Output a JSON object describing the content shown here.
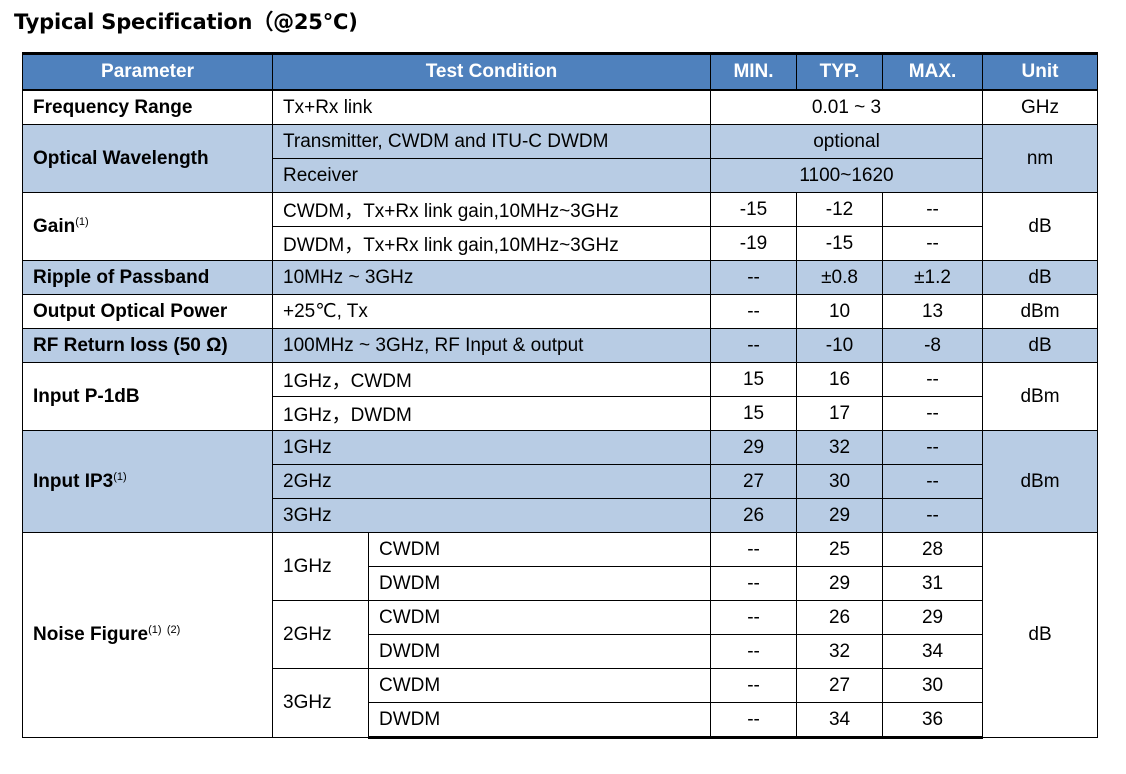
{
  "title": "Typical Specification（@25°C)",
  "header": {
    "parameter": "Parameter",
    "test_condition": "Test Condition",
    "min": "MIN.",
    "typ": "TYP.",
    "max": "MAX.",
    "unit": "Unit"
  },
  "rows": {
    "freq": {
      "param": "Frequency Range",
      "cond": "Tx+Rx link",
      "value": "0.01 ~ 3",
      "unit": "GHz"
    },
    "wave": {
      "param": "Optical Wavelength",
      "cond1": "Transmitter, CWDM and ITU-C DWDM",
      "value1": "optional",
      "cond2": "Receiver",
      "value2": "1100~1620",
      "unit": "nm"
    },
    "gain": {
      "param": "Gain",
      "note": "(1)",
      "unit": "dB",
      "r1": {
        "cond": "CWDM，Tx+Rx link gain,10MHz~3GHz",
        "min": "-15",
        "typ": "-12",
        "max": "--"
      },
      "r2": {
        "cond": "DWDM，Tx+Rx link gain,10MHz~3GHz",
        "min": "-19",
        "typ": "-15",
        "max": "--"
      }
    },
    "ripple": {
      "param": "Ripple of Passband",
      "cond": "10MHz ~ 3GHz",
      "min": "--",
      "typ": "±0.8",
      "max": "±1.2",
      "unit": "dB"
    },
    "power": {
      "param": "Output Optical Power",
      "cond": "+25℃, Tx",
      "min": "--",
      "typ": "10",
      "max": "13",
      "unit": "dBm"
    },
    "rl": {
      "param": "RF Return loss (50 Ω)",
      "cond": "100MHz ~ 3GHz, RF Input & output",
      "min": "--",
      "typ": "-10",
      "max": "-8",
      "unit": "dB"
    },
    "p1db": {
      "param": "Input P-1dB",
      "unit": "dBm",
      "r1": {
        "cond": "1GHz，CWDM",
        "min": "15",
        "typ": "16",
        "max": "--"
      },
      "r2": {
        "cond": "1GHz，DWDM",
        "min": "15",
        "typ": "17",
        "max": "--"
      }
    },
    "ip3": {
      "param": "Input IP3",
      "note": "(1)",
      "unit": "dBm",
      "r1": {
        "cond": "1GHz",
        "min": "29",
        "typ": "32",
        "max": "--"
      },
      "r2": {
        "cond": "2GHz",
        "min": "27",
        "typ": "30",
        "max": "--"
      },
      "r3": {
        "cond": "3GHz",
        "min": "26",
        "typ": "29",
        "max": "--"
      }
    },
    "nf": {
      "param": "Noise Figure",
      "note1": "(1)",
      "note2": "(2)",
      "unit": "dB",
      "g1": {
        "freq": "1GHz",
        "a": {
          "type": "CWDM",
          "min": "--",
          "typ": "25",
          "max": "28"
        },
        "b": {
          "type": "DWDM",
          "min": "--",
          "typ": "29",
          "max": "31"
        }
      },
      "g2": {
        "freq": "2GHz",
        "a": {
          "type": "CWDM",
          "min": "--",
          "typ": "26",
          "max": "29"
        },
        "b": {
          "type": "DWDM",
          "min": "--",
          "typ": "32",
          "max": "34"
        }
      },
      "g3": {
        "freq": "3GHz",
        "a": {
          "type": "CWDM",
          "min": "--",
          "typ": "27",
          "max": "30"
        },
        "b": {
          "type": "DWDM",
          "min": "--",
          "typ": "34",
          "max": "36"
        }
      }
    }
  },
  "colors": {
    "header_bg": "#4f81bd",
    "band_bg": "#b8cce4"
  }
}
